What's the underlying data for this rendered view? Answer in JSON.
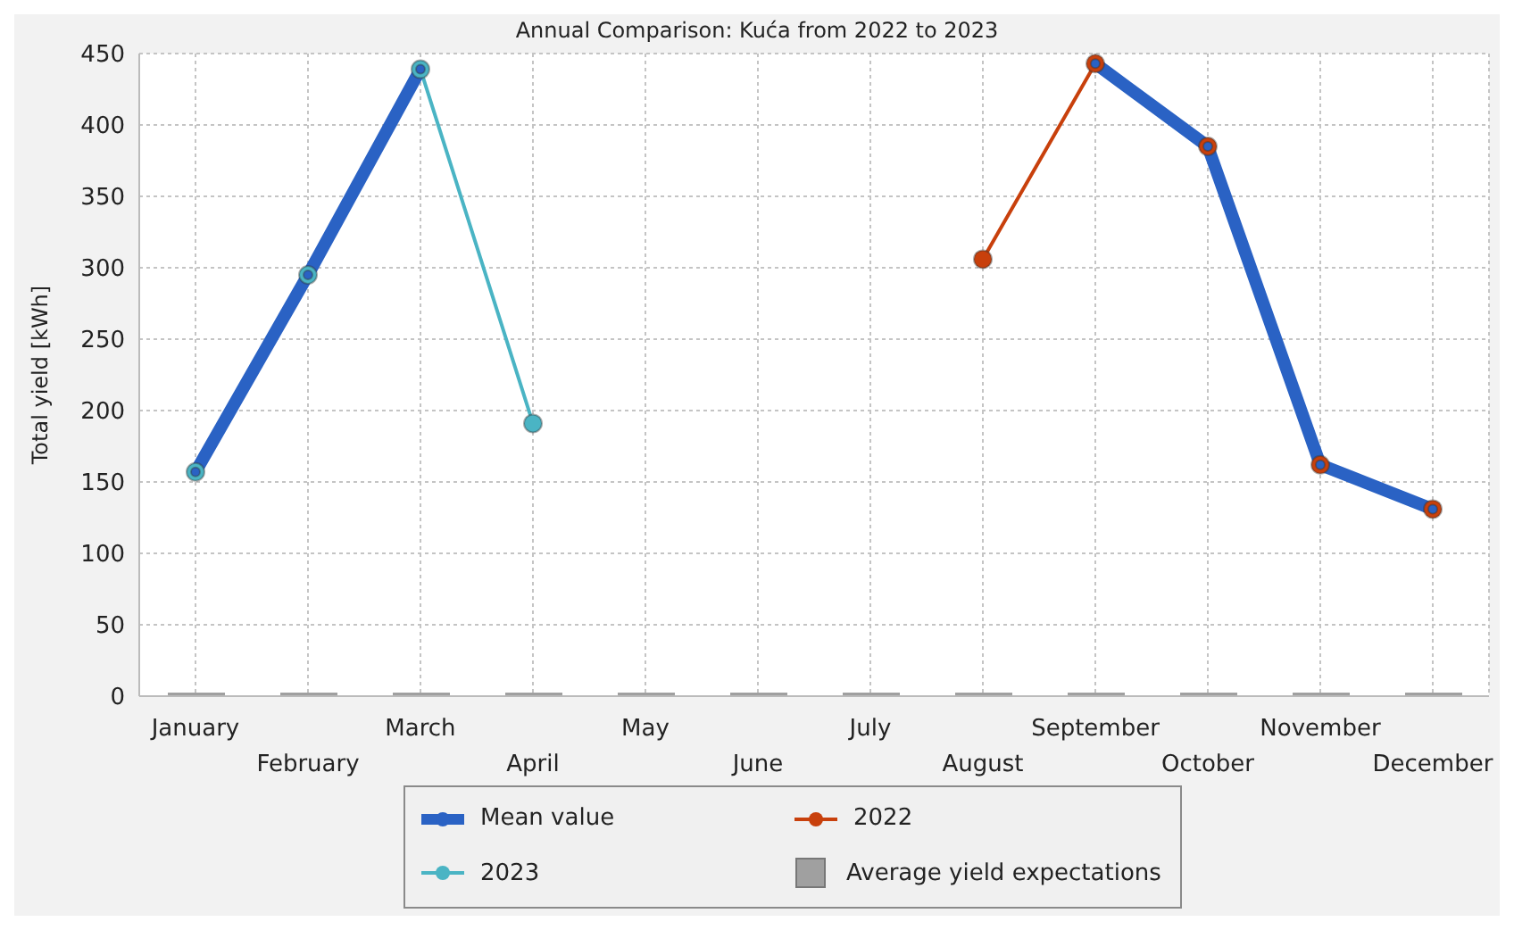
{
  "chart_data": {
    "type": "line",
    "title": "Annual Comparison: Kuća from 2022 to 2023",
    "ylabel": "Total yield [kWh]",
    "categories": [
      "January",
      "February",
      "March",
      "April",
      "May",
      "June",
      "July",
      "August",
      "September",
      "October",
      "November",
      "December"
    ],
    "series": [
      {
        "name": "Mean value",
        "color": "#2a62c4",
        "values": [
          157,
          295,
          439,
          null,
          null,
          null,
          null,
          null,
          443,
          385,
          162,
          131
        ]
      },
      {
        "name": "2022",
        "color": "#c8400c",
        "values": [
          null,
          null,
          null,
          null,
          null,
          null,
          null,
          306,
          443,
          385,
          162,
          131
        ]
      },
      {
        "name": "2023",
        "color": "#4ab4c4",
        "values": [
          157,
          295,
          439,
          191,
          null,
          null,
          null,
          null,
          null,
          null,
          null,
          null
        ]
      },
      {
        "name": "Average yield expectations",
        "type": "bar",
        "color": "#a0a0a0",
        "values": [
          0,
          0,
          0,
          0,
          0,
          0,
          0,
          0,
          0,
          0,
          0,
          0
        ]
      }
    ],
    "ylim": [
      0,
      450
    ],
    "yticks": [
      0,
      50,
      100,
      150,
      200,
      250,
      300,
      350,
      400,
      450
    ],
    "grid": true,
    "legend": "bottom",
    "marker": "circle"
  }
}
